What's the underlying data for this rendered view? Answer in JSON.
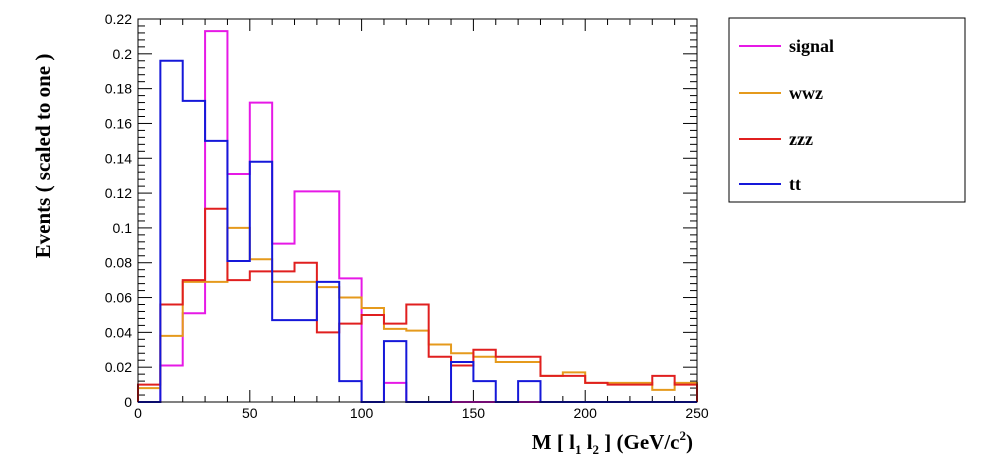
{
  "chart_data": {
    "type": "histogram",
    "xlabel": "M [ l1 l2 ] (GeV/c2)",
    "xlabel_parts": {
      "base": "M [ l",
      "sub1": "1",
      "mid": " l",
      "sub2": "2",
      "end": " ] (GeV/c",
      "sup": "2",
      "close": ")"
    },
    "ylabel": "Events  ( scaled to one )",
    "xlim": [
      0,
      250
    ],
    "ylim": [
      0,
      0.22
    ],
    "x_ticks": [
      0,
      50,
      100,
      150,
      200,
      250
    ],
    "y_ticks": [
      0,
      0.02,
      0.04,
      0.06,
      0.08,
      0.1,
      0.12,
      0.14,
      0.16,
      0.18,
      0.2,
      0.22
    ],
    "bin_edges": [
      0,
      10,
      20,
      30,
      40,
      50,
      60,
      70,
      80,
      90,
      100,
      110,
      120,
      130,
      140,
      150,
      160,
      170,
      180,
      190,
      200,
      210,
      220,
      230,
      240,
      250
    ],
    "series": [
      {
        "name": "signal",
        "color": "#e619e6",
        "values": [
          0,
          0.021,
          0.051,
          0.213,
          0.131,
          0.172,
          0.091,
          0.121,
          0.121,
          0.071,
          0.0,
          0.011,
          0.0,
          0.0,
          0.0,
          0.0,
          0.0,
          0.0,
          0.0,
          0.0,
          0.0,
          0.0,
          0.0,
          0.0,
          0.0
        ]
      },
      {
        "name": "wwz",
        "color": "#e59a1c",
        "values": [
          0.008,
          0.038,
          0.069,
          0.069,
          0.1,
          0.082,
          0.069,
          0.069,
          0.066,
          0.06,
          0.054,
          0.042,
          0.041,
          0.033,
          0.028,
          0.026,
          0.023,
          0.023,
          0.015,
          0.017,
          0.011,
          0.011,
          0.011,
          0.007,
          0.011
        ]
      },
      {
        "name": "zzz",
        "color": "#e01f1f",
        "values": [
          0.01,
          0.056,
          0.07,
          0.111,
          0.07,
          0.075,
          0.075,
          0.08,
          0.04,
          0.045,
          0.05,
          0.045,
          0.056,
          0.026,
          0.021,
          0.03,
          0.026,
          0.026,
          0.015,
          0.015,
          0.011,
          0.01,
          0.01,
          0.015,
          0.01
        ]
      },
      {
        "name": "tt",
        "color": "#1518d9",
        "values": [
          0,
          0.196,
          0.173,
          0.15,
          0.081,
          0.138,
          0.047,
          0.047,
          0.069,
          0.012,
          0.0,
          0.035,
          0.0,
          0.0,
          0.023,
          0.012,
          0.0,
          0.012,
          0.0,
          0.0,
          0.0,
          0.0,
          0.0,
          0.0,
          0.0
        ]
      }
    ],
    "legend_position": "top-right, outside plot"
  }
}
